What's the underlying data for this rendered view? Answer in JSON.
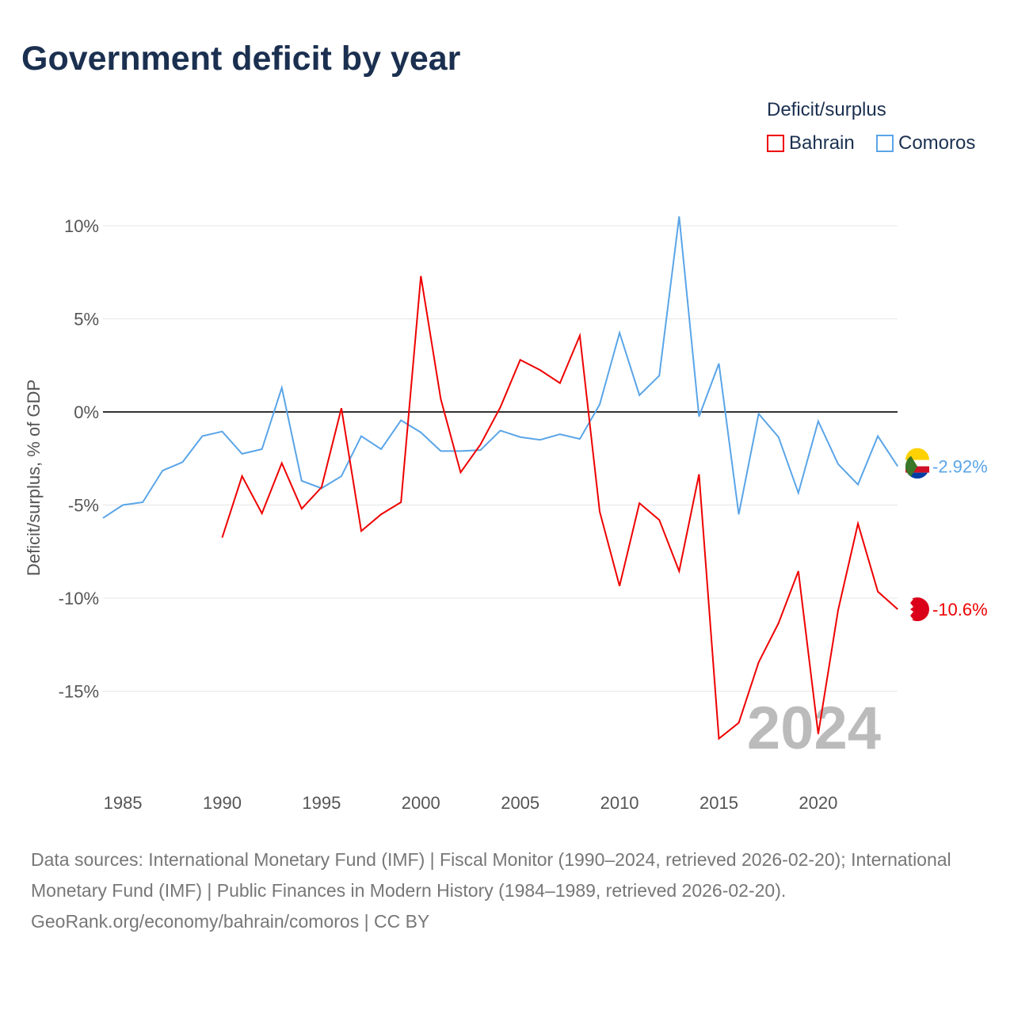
{
  "title": "Government deficit by year",
  "legend": {
    "title": "Deficit/surplus",
    "items": [
      {
        "name": "Bahrain",
        "color": "#ee0000"
      },
      {
        "name": "Comoros",
        "color": "#5aa5e8"
      }
    ]
  },
  "year_label": "2024",
  "footer": {
    "sources": "Data sources: International Monetary Fund (IMF) | Fiscal Monitor (1990–2024, retrieved 2026-02-20); International Monetary Fund (IMF) | Public Finances in Modern History (1984–1989, retrieved 2026-02-20).",
    "credit": "GeoRank.org/economy/bahrain/comoros | CC BY"
  },
  "chart_data": {
    "type": "line",
    "title": "Government deficit by year",
    "xlabel": "",
    "ylabel": "Deficit/surplus, % of GDP",
    "xlim": [
      1984,
      2024
    ],
    "ylim": [
      -19,
      11
    ],
    "xticks": [
      1985,
      1990,
      1995,
      2000,
      2005,
      2010,
      2015,
      2020
    ],
    "yticks": [
      {
        "v": 10,
        "label": "10%"
      },
      {
        "v": 5,
        "label": "5%"
      },
      {
        "v": 0,
        "label": "0%"
      },
      {
        "v": -5,
        "label": "-5%"
      },
      {
        "v": -10,
        "label": "-10%"
      },
      {
        "v": -15,
        "label": "-15%"
      }
    ],
    "series": [
      {
        "name": "Comoros",
        "color": "#5aa5e8",
        "end_label": "-2.92%",
        "start": 1984,
        "values": [
          -5.7,
          -5.0,
          -4.85,
          -3.15,
          -2.7,
          -1.3,
          -1.05,
          -2.25,
          -2.0,
          1.3,
          -3.7,
          -4.1,
          -3.45,
          -1.3,
          -2.0,
          -0.45,
          -1.1,
          -2.1,
          -2.1,
          -2.05,
          -1.0,
          -1.35,
          -1.5,
          -1.2,
          -1.45,
          0.4,
          4.25,
          0.9,
          1.95,
          10.5,
          -0.25,
          2.6,
          -5.5,
          -0.1,
          -1.35,
          -4.35,
          -0.5,
          -2.8,
          -3.9,
          -1.3,
          -2.92
        ]
      },
      {
        "name": "Bahrain",
        "color": "#ee0000",
        "end_label": "-10.6%",
        "start": 1990,
        "values": [
          -6.75,
          -3.45,
          -5.45,
          -2.75,
          -5.2,
          -4.05,
          0.2,
          -6.4,
          -5.5,
          -4.85,
          7.3,
          0.7,
          -3.25,
          -1.75,
          0.25,
          2.8,
          2.25,
          1.55,
          4.1,
          -5.35,
          -9.35,
          -4.9,
          -5.8,
          -8.55,
          -3.35,
          -17.55,
          -16.7,
          -13.45,
          -11.35,
          -8.55,
          -17.3,
          -10.65,
          -6.0,
          -9.65,
          -10.6
        ]
      }
    ]
  }
}
